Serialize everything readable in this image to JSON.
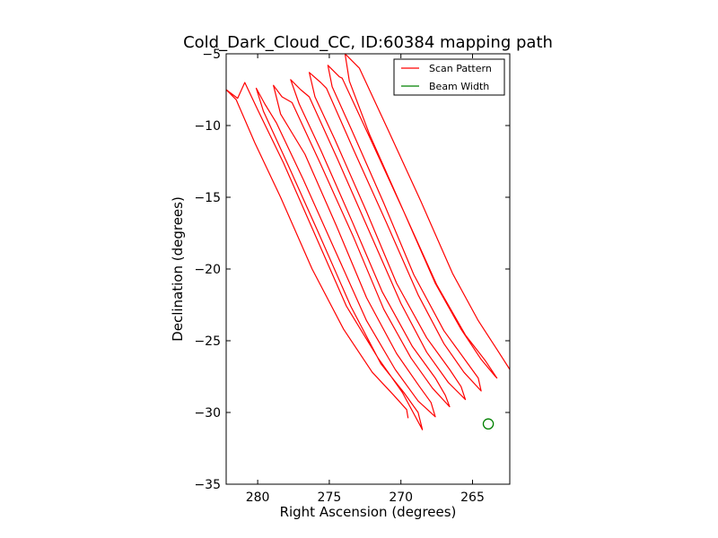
{
  "colors": {
    "scan": "#ff0000",
    "beam": "#008000"
  },
  "chart_data": {
    "type": "line",
    "title": "Cold_Dark_Cloud_CC, ID:60384 mapping path",
    "xlabel": "Right Ascension (degrees)",
    "ylabel": "Declination (degrees)",
    "xlim": [
      282.2,
      262.4
    ],
    "ylim": [
      -35,
      -5
    ],
    "x_inverted": true,
    "grid": false,
    "legend_position": "top-right",
    "xticks": [
      280,
      275,
      270,
      265
    ],
    "xtick_labels": [
      "280",
      "275",
      "270",
      "265"
    ],
    "yticks": [
      -5,
      -10,
      -15,
      -20,
      -25,
      -30,
      -35
    ],
    "ytick_labels": [
      "−5",
      "−10",
      "−15",
      "−20",
      "−25",
      "−30",
      "−35"
    ],
    "legend": [
      {
        "name": "Scan Pattern",
        "kind": "line",
        "color": "#ff0000"
      },
      {
        "name": "Beam Width",
        "kind": "line",
        "color": "#008000"
      }
    ],
    "series": [
      {
        "name": "Scan Pattern",
        "points": [
          [
            269.5,
            -30.4
          ],
          [
            269.6,
            -29.8
          ],
          [
            270.5,
            -28.8
          ],
          [
            272.0,
            -27.2
          ],
          [
            274.0,
            -24.2
          ],
          [
            276.2,
            -20.0
          ],
          [
            278.4,
            -15.0
          ],
          [
            280.2,
            -11.2
          ],
          [
            281.5,
            -8.2
          ],
          [
            282.2,
            -7.5
          ],
          [
            281.4,
            -8.1
          ],
          [
            280.9,
            -7.0
          ],
          [
            280.0,
            -8.9
          ],
          [
            278.2,
            -12.6
          ],
          [
            276.0,
            -17.6
          ],
          [
            273.8,
            -22.6
          ],
          [
            271.6,
            -26.2
          ],
          [
            269.9,
            -28.6
          ],
          [
            268.5,
            -31.2
          ],
          [
            268.8,
            -30.0
          ],
          [
            269.8,
            -28.6
          ],
          [
            271.4,
            -26.6
          ],
          [
            273.5,
            -22.6
          ],
          [
            275.7,
            -17.6
          ],
          [
            277.9,
            -12.7
          ],
          [
            279.6,
            -9.0
          ],
          [
            280.1,
            -7.4
          ],
          [
            279.5,
            -8.5
          ],
          [
            278.7,
            -9.8
          ],
          [
            276.8,
            -13.8
          ],
          [
            274.6,
            -18.7
          ],
          [
            272.4,
            -23.6
          ],
          [
            270.4,
            -27.0
          ],
          [
            268.8,
            -29.2
          ],
          [
            267.6,
            -30.3
          ],
          [
            267.9,
            -29.3
          ],
          [
            268.7,
            -28.2
          ],
          [
            270.3,
            -25.9
          ],
          [
            272.4,
            -22.0
          ],
          [
            274.5,
            -17.0
          ],
          [
            276.7,
            -12.0
          ],
          [
            278.4,
            -9.2
          ],
          [
            278.9,
            -7.2
          ],
          [
            278.3,
            -8.0
          ],
          [
            277.6,
            -8.4
          ],
          [
            275.6,
            -12.7
          ],
          [
            273.3,
            -17.8
          ],
          [
            271.2,
            -22.8
          ],
          [
            269.3,
            -26.2
          ],
          [
            267.8,
            -28.3
          ],
          [
            266.6,
            -29.6
          ],
          [
            266.9,
            -28.8
          ],
          [
            267.6,
            -27.6
          ],
          [
            269.2,
            -25.4
          ],
          [
            271.3,
            -21.6
          ],
          [
            273.4,
            -16.7
          ],
          [
            275.6,
            -11.7
          ],
          [
            277.1,
            -8.5
          ],
          [
            277.7,
            -6.8
          ],
          [
            277.0,
            -7.5
          ],
          [
            276.4,
            -8.0
          ],
          [
            274.4,
            -12.4
          ],
          [
            272.2,
            -17.4
          ],
          [
            270.0,
            -22.4
          ],
          [
            268.2,
            -25.8
          ],
          [
            266.7,
            -27.9
          ],
          [
            265.5,
            -29.1
          ],
          [
            265.8,
            -28.2
          ],
          [
            266.6,
            -27.0
          ],
          [
            268.2,
            -24.8
          ],
          [
            270.3,
            -21.0
          ],
          [
            272.4,
            -16.0
          ],
          [
            274.6,
            -11.0
          ],
          [
            276.0,
            -8.0
          ],
          [
            276.4,
            -6.3
          ],
          [
            275.6,
            -7.0
          ],
          [
            275.2,
            -7.4
          ],
          [
            273.3,
            -11.7
          ],
          [
            271.0,
            -16.8
          ],
          [
            268.8,
            -21.8
          ],
          [
            267.0,
            -25.2
          ],
          [
            265.6,
            -27.2
          ],
          [
            264.4,
            -28.5
          ],
          [
            264.6,
            -27.6
          ],
          [
            265.4,
            -26.5
          ],
          [
            267.0,
            -24.3
          ],
          [
            269.1,
            -20.4
          ],
          [
            271.2,
            -15.4
          ],
          [
            273.4,
            -10.4
          ],
          [
            274.8,
            -7.3
          ],
          [
            275.1,
            -5.8
          ],
          [
            274.3,
            -6.6
          ],
          [
            274.1,
            -6.7
          ],
          [
            272.1,
            -11.0
          ],
          [
            269.8,
            -16.0
          ],
          [
            267.6,
            -21.0
          ],
          [
            265.8,
            -24.2
          ],
          [
            264.4,
            -26.3
          ],
          [
            263.4,
            -27.5
          ],
          [
            263.3,
            -27.6
          ],
          [
            264.1,
            -26.4
          ],
          [
            265.5,
            -24.6
          ],
          [
            267.5,
            -21.1
          ],
          [
            269.8,
            -16.0
          ],
          [
            272.2,
            -10.6
          ],
          [
            273.6,
            -6.9
          ],
          [
            273.9,
            -5.0
          ],
          [
            273.0,
            -5.9
          ],
          [
            272.9,
            -6.0
          ],
          [
            270.9,
            -10.3
          ],
          [
            268.6,
            -15.3
          ],
          [
            266.4,
            -20.3
          ],
          [
            264.6,
            -23.6
          ],
          [
            263.3,
            -25.6
          ],
          [
            262.4,
            -27.0
          ],
          [
            262.0,
            -28.5
          ]
        ]
      },
      {
        "name": "Beam Width",
        "center": [
          263.9,
          -30.8
        ],
        "radius": 0.35
      }
    ]
  }
}
